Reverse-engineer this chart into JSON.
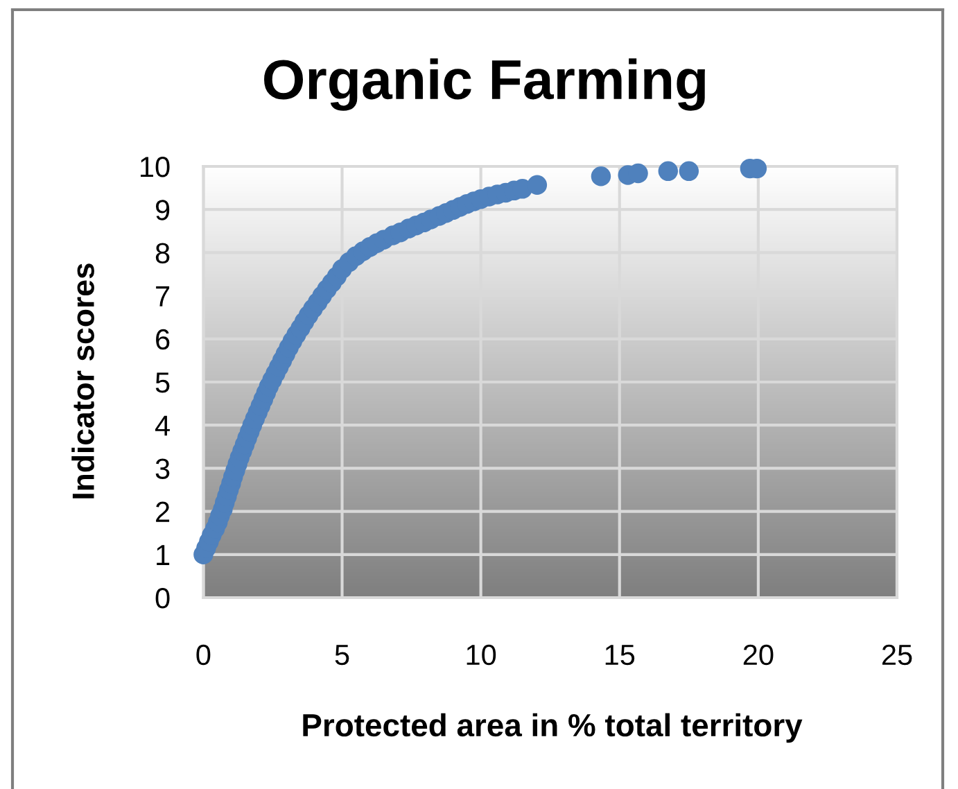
{
  "chart_data": {
    "type": "scatter",
    "title": "Organic Farming",
    "xlabel": "Protected area in % total territory",
    "ylabel": "Indicator scores",
    "x": [
      0,
      0.1,
      0.2,
      0.3,
      0.42,
      0.52,
      0.6,
      0.7,
      0.77,
      0.85,
      0.92,
      1.0,
      1.07,
      1.15,
      1.23,
      1.31,
      1.4,
      1.49,
      1.58,
      1.67,
      1.76,
      1.86,
      1.96,
      2.06,
      2.16,
      2.26,
      2.36,
      2.48,
      2.6,
      2.72,
      2.84,
      2.96,
      3.08,
      3.21,
      3.35,
      3.5,
      3.64,
      3.79,
      3.95,
      4.12,
      4.28,
      4.45,
      4.63,
      4.81,
      5.0,
      5.25,
      5.5,
      5.75,
      6.0,
      6.25,
      6.5,
      6.83,
      7.1,
      7.4,
      7.67,
      7.95,
      8.2,
      8.5,
      8.75,
      9.0,
      9.25,
      9.5,
      9.75,
      10.0,
      10.3,
      10.6,
      10.9,
      11.2,
      11.5,
      12.03,
      14.33,
      15.3,
      15.67,
      16.75,
      17.5,
      19.7,
      19.95
    ],
    "values": [
      1.0,
      1.15,
      1.3,
      1.45,
      1.6,
      1.75,
      1.9,
      2.05,
      2.2,
      2.35,
      2.5,
      2.65,
      2.8,
      2.95,
      3.1,
      3.25,
      3.4,
      3.55,
      3.7,
      3.85,
      4.0,
      4.15,
      4.3,
      4.45,
      4.6,
      4.75,
      4.9,
      5.05,
      5.2,
      5.35,
      5.5,
      5.65,
      5.8,
      5.95,
      6.1,
      6.25,
      6.4,
      6.55,
      6.7,
      6.85,
      7.0,
      7.15,
      7.3,
      7.45,
      7.62,
      7.78,
      7.92,
      8.03,
      8.13,
      8.22,
      8.3,
      8.4,
      8.47,
      8.56,
      8.63,
      8.7,
      8.77,
      8.85,
      8.92,
      8.99,
      9.06,
      9.13,
      9.19,
      9.24,
      9.3,
      9.35,
      9.39,
      9.44,
      9.48,
      9.57,
      9.77,
      9.8,
      9.84,
      9.89,
      9.89,
      9.95,
      9.95
    ],
    "color": "#4f81bd",
    "marker": "circle",
    "xlim": [
      0,
      25
    ],
    "ylim": [
      0,
      10
    ],
    "xticks": [
      0,
      5,
      10,
      15,
      20,
      25
    ],
    "yticks": [
      0,
      1,
      2,
      3,
      4,
      5,
      6,
      7,
      8,
      9,
      10
    ],
    "grid": true
  }
}
